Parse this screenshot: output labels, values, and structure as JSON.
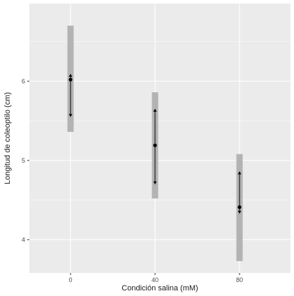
{
  "chart_data": {
    "type": "errorbar-range",
    "title": "",
    "xlabel": "Condición salina (mM)",
    "ylabel": "Longitud de coleoptilo (cm)",
    "categories": [
      "0",
      "40",
      "80"
    ],
    "y_ticks": [
      4,
      5,
      6
    ],
    "ylim": [
      3.58,
      6.98
    ],
    "grid": true,
    "background": "#ebebeb",
    "grid_color": "#ffffff",
    "range_color": "#b3b3b3",
    "point_color": "#000000",
    "series": [
      {
        "category": "0",
        "range_low": 5.36,
        "range_high": 6.7,
        "mean": 6.02,
        "arrow_low": 5.55,
        "arrow_high": 6.09
      },
      {
        "category": "40",
        "range_low": 4.52,
        "range_high": 5.86,
        "mean": 5.19,
        "arrow_low": 4.7,
        "arrow_high": 5.65
      },
      {
        "category": "80",
        "range_low": 3.73,
        "range_high": 5.08,
        "mean": 4.41,
        "arrow_low": 4.33,
        "arrow_high": 4.86
      }
    ]
  }
}
